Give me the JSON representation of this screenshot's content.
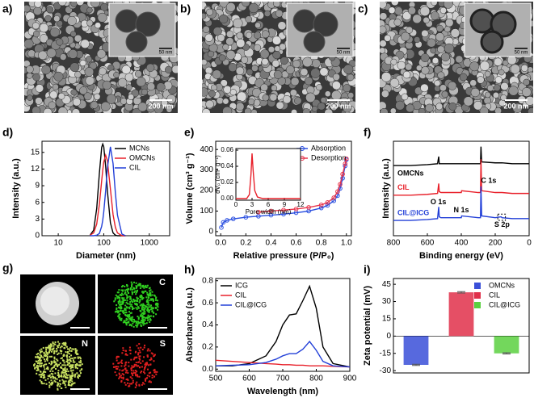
{
  "images": [
    {
      "label": "a)",
      "scale_bar": "200 nm",
      "inset_scale_bar": "50 nm"
    },
    {
      "label": "b)",
      "scale_bar": "200 nm",
      "inset_scale_bar": "50 nm"
    },
    {
      "label": "c)",
      "scale_bar": "200 nm",
      "inset_scale_bar": "50 nm"
    }
  ],
  "mapping": {
    "label": "g)",
    "elements": [
      "C",
      "N",
      "S"
    ]
  },
  "chart_data": [
    {
      "panel": "d)",
      "type": "line",
      "log_x": true,
      "xlabel": "Diameter (nm)",
      "ylabel": "Intensity (a.u.)",
      "x": [
        50,
        60,
        70,
        80,
        90,
        95,
        100,
        110,
        120,
        140,
        160,
        180,
        200,
        250,
        300
      ],
      "series": [
        {
          "name": "MCNs",
          "color": "#000000",
          "values": [
            0.1,
            1.0,
            4.9,
            11.2,
            15.9,
            16.5,
            16.0,
            12.5,
            8.1,
            2.3,
            0.5,
            0.1,
            0,
            0,
            0
          ]
        },
        {
          "name": "OMCNs",
          "color": "#e8202a",
          "values": [
            0.1,
            0.5,
            2.1,
            5.6,
            9.9,
            11.8,
            13.3,
            14.5,
            13.5,
            8.4,
            3.8,
            1.5,
            0.5,
            0,
            0
          ]
        },
        {
          "name": "CIL",
          "color": "#2340d8",
          "values": [
            0,
            0,
            0.1,
            0.4,
            1.7,
            2.8,
            4.3,
            8.1,
            12.2,
            16,
            13.0,
            7.7,
            3.7,
            0.3,
            0
          ]
        }
      ],
      "xlim": [
        4.4,
        2800
      ],
      "xticks": [
        10,
        100,
        1000
      ],
      "ylim": [
        0,
        17
      ],
      "yticks": [
        0,
        3,
        6,
        9,
        12,
        15
      ],
      "legend": "upper right"
    },
    {
      "panel": "e)",
      "type": "line",
      "markers": true,
      "xlabel": "Relative pressure (P/P₀)",
      "ylabel": "Volume (cm³ g⁻¹)",
      "series": [
        {
          "name": "Absorption",
          "color": "#2a4fe0",
          "x": [
            0.005,
            0.02,
            0.05,
            0.1,
            0.2,
            0.3,
            0.4,
            0.5,
            0.6,
            0.7,
            0.8,
            0.85,
            0.9,
            0.93,
            0.95,
            0.97,
            0.99,
            1.0
          ],
          "values": [
            20,
            45,
            55,
            62,
            70,
            75,
            80,
            85,
            92,
            100,
            115,
            128,
            150,
            175,
            210,
            260,
            320,
            350
          ]
        },
        {
          "name": "Desorption",
          "color": "#e8344a",
          "x": [
            0.3,
            0.4,
            0.5,
            0.6,
            0.7,
            0.8,
            0.85,
            0.9,
            0.93,
            0.95,
            0.97,
            0.99,
            1.0
          ],
          "values": [
            95,
            100,
            105,
            110,
            118,
            130,
            142,
            165,
            195,
            230,
            280,
            330,
            355
          ]
        }
      ],
      "xlim": [
        -0.04,
        1.04
      ],
      "xticks": [
        {
          "value": 0,
          "label": "0.0"
        },
        0.2,
        0.4,
        0.6,
        0.8,
        {
          "value": 1,
          "label": "1.0"
        }
      ],
      "ylim": [
        -20,
        440
      ],
      "yticks": [
        0,
        100,
        200,
        300,
        400
      ],
      "legend": "upper right",
      "inset": {
        "type": "line",
        "xlabel": "Pore width (nm)",
        "ylabel": "dVₚ (cm³ g⁻¹)",
        "x": [
          0,
          1,
          2,
          2.5,
          2.8,
          3,
          3.2,
          3.5,
          4,
          5,
          6,
          8,
          10,
          12
        ],
        "series": [
          {
            "color": "#e8202a",
            "values": [
              0,
              0,
              0,
              0.005,
              0.03,
              0.056,
              0.035,
              0.01,
              0.002,
              0,
              0,
              0,
              0,
              0
            ]
          }
        ],
        "xlim": [
          0,
          12
        ],
        "xticks": [
          0,
          3,
          6,
          9,
          12
        ],
        "ylim": [
          -0.002,
          0.062
        ],
        "yticks": [
          {
            "value": 0,
            "label": "0.00"
          },
          0.02,
          0.04,
          0.06
        ]
      }
    },
    {
      "panel": "f)",
      "type": "line",
      "xlabel": "Binding energy (eV)",
      "ylabel": "Intensity (a.u.)",
      "series_labels": "inline",
      "x": [
        800,
        700,
        600,
        540,
        533,
        530,
        520,
        420,
        400,
        398,
        300,
        287,
        284,
        280,
        200,
        165,
        160,
        100,
        0
      ],
      "series": [
        {
          "name": "OMCNs",
          "color": "#000000",
          "values": [
            0.78,
            0.78,
            0.79,
            0.8,
            0.88,
            0.8,
            0.8,
            0.8,
            0.8,
            0.8,
            0.8,
            0.8,
            0.99,
            0.82,
            0.81,
            0.81,
            0.81,
            0.8,
            0.8
          ]
        },
        {
          "name": "CIL",
          "color": "#e8202a",
          "values": [
            0.45,
            0.45,
            0.46,
            0.47,
            0.58,
            0.49,
            0.48,
            0.48,
            0.48,
            0.5,
            0.48,
            0.48,
            0.85,
            0.5,
            0.48,
            0.48,
            0.48,
            0.47,
            0.47
          ]
        },
        {
          "name": "CIL@ICG",
          "color": "#2340d8",
          "values": [
            0.17,
            0.17,
            0.18,
            0.19,
            0.32,
            0.21,
            0.2,
            0.2,
            0.2,
            0.22,
            0.2,
            0.2,
            0.55,
            0.22,
            0.2,
            0.21,
            0.2,
            0.19,
            0.19
          ]
        }
      ],
      "annotations": [
        "O 1s",
        "N 1s",
        "C 1s",
        "S 2p"
      ],
      "xlim": [
        800,
        0
      ],
      "xticks": [
        800,
        600,
        400,
        200,
        0
      ],
      "ylim": [
        0,
        1.05
      ]
    },
    {
      "panel": "h)",
      "type": "line",
      "xlabel": "Wavelength (nm)",
      "ylabel": "Absorbance (a.u.)",
      "x": [
        500,
        550,
        600,
        650,
        680,
        700,
        720,
        740,
        760,
        780,
        800,
        820,
        850,
        900
      ],
      "series": [
        {
          "name": "ICG",
          "color": "#000000",
          "values": [
            0.03,
            0.03,
            0.05,
            0.12,
            0.25,
            0.4,
            0.49,
            0.5,
            0.62,
            0.75,
            0.55,
            0.2,
            0.05,
            0.02
          ]
        },
        {
          "name": "CIL",
          "color": "#e8202a",
          "values": [
            0.08,
            0.07,
            0.06,
            0.05,
            0.045,
            0.04,
            0.04,
            0.035,
            0.035,
            0.03,
            0.03,
            0.03,
            0.025,
            0.02
          ]
        },
        {
          "name": "CIL@ICG",
          "color": "#2340d8",
          "values": [
            0.03,
            0.035,
            0.04,
            0.06,
            0.09,
            0.12,
            0.14,
            0.14,
            0.18,
            0.25,
            0.17,
            0.07,
            0.03,
            0.02
          ]
        }
      ],
      "xlim": [
        500,
        900
      ],
      "xticks": [
        500,
        600,
        700,
        800,
        900
      ],
      "ylim": [
        -0.02,
        0.82
      ],
      "yticks": [
        {
          "value": 0,
          "label": "0.0"
        },
        0.2,
        0.4,
        0.6,
        0.8
      ],
      "legend": "upper left"
    },
    {
      "panel": "i)",
      "type": "bar",
      "ylabel": "Zeta potential (mV)",
      "categories": [
        "OMCNs",
        "CIL",
        "CIL@ICG"
      ],
      "values": [
        -25,
        38,
        -15
      ],
      "errors": [
        0.5,
        0.6,
        0.5
      ],
      "colors": [
        "#3a4fd8",
        "#e0304a",
        "#5ad040"
      ],
      "ylim": [
        -32,
        50
      ],
      "yticks": [
        -30,
        -15,
        0,
        15,
        30,
        45
      ],
      "legend": "upper right"
    }
  ]
}
